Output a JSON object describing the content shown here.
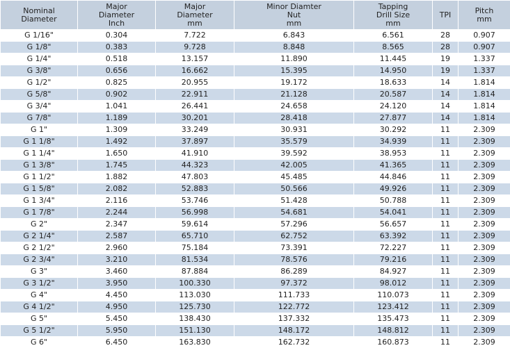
{
  "table": {
    "header": [
      [
        "Nominal",
        "Diameter"
      ],
      [
        "Major",
        "Diameter",
        "Inch"
      ],
      [
        "Major",
        "Diameter",
        "mm"
      ],
      [
        "Minor Diamter",
        "Nut",
        "mm"
      ],
      [
        "Tapping",
        "Drill Size",
        "mm"
      ],
      [
        "TPI"
      ],
      [
        "Pitch",
        "mm"
      ]
    ],
    "rows": [
      [
        "G 1/16\"",
        "0.304",
        "7.722",
        "6.843",
        "6.561",
        "28",
        "0.907"
      ],
      [
        "G 1/8\"",
        "0.383",
        "9.728",
        "8.848",
        "8.565",
        "28",
        "0.907"
      ],
      [
        "G 1/4\"",
        "0.518",
        "13.157",
        "11.890",
        "11.445",
        "19",
        "1.337"
      ],
      [
        "G 3/8\"",
        "0.656",
        "16.662",
        "15.395",
        "14.950",
        "19",
        "1.337"
      ],
      [
        "G 1/2\"",
        "0.825",
        "20.955",
        "19.172",
        "18.633",
        "14",
        "1.814"
      ],
      [
        "G 5/8\"",
        "0.902",
        "22.911",
        "21.128",
        "20.587",
        "14",
        "1.814"
      ],
      [
        "G 3/4\"",
        "1.041",
        "26.441",
        "24.658",
        "24.120",
        "14",
        "1.814"
      ],
      [
        "G 7/8\"",
        "1.189",
        "30.201",
        "28.418",
        "27.877",
        "14",
        "1.814"
      ],
      [
        "G 1\"",
        "1.309",
        "33.249",
        "30.931",
        "30.292",
        "11",
        "2.309"
      ],
      [
        "G 1 1/8\"",
        "1.492",
        "37.897",
        "35.579",
        "34.939",
        "11",
        "2.309"
      ],
      [
        "G 1 1/4\"",
        "1.650",
        "41.910",
        "39.592",
        "38.953",
        "11",
        "2.309"
      ],
      [
        "G 1 3/8\"",
        "1.745",
        "44.323",
        "42.005",
        "41.365",
        "11",
        "2.309"
      ],
      [
        "G 1 1/2\"",
        "1.882",
        "47.803",
        "45.485",
        "44.846",
        "11",
        "2.309"
      ],
      [
        "G 1 5/8\"",
        "2.082",
        "52.883",
        "50.566",
        "49.926",
        "11",
        "2.309"
      ],
      [
        "G 1 3/4\"",
        "2.116",
        "53.746",
        "51.428",
        "50.788",
        "11",
        "2.309"
      ],
      [
        "G 1 7/8\"",
        "2.244",
        "56.998",
        "54.681",
        "54.041",
        "11",
        "2.309"
      ],
      [
        "G 2\"",
        "2.347",
        "59.614",
        "57.296",
        "56.657",
        "11",
        "2.309"
      ],
      [
        "G 2 1/4\"",
        "2.587",
        "65.710",
        "62.752",
        "63.392",
        "11",
        "2.309"
      ],
      [
        "G 2 1/2\"",
        "2.960",
        "75.184",
        "73.391",
        "72.227",
        "11",
        "2.309"
      ],
      [
        "G 2 3/4\"",
        "3.210",
        "81.534",
        "78.576",
        "79.216",
        "11",
        "2.309"
      ],
      [
        "G 3\"",
        "3.460",
        "87.884",
        "86.289",
        "84.927",
        "11",
        "2.309"
      ],
      [
        "G 3 1/2\"",
        "3.950",
        "100.330",
        "97.372",
        "98.012",
        "11",
        "2.309"
      ],
      [
        "G 4\"",
        "4.450",
        "113.030",
        "111.733",
        "110.073",
        "11",
        "2.309"
      ],
      [
        "G 4 1/2\"",
        "4.950",
        "125.730",
        "122.772",
        "123.412",
        "11",
        "2.309"
      ],
      [
        "G 5\"",
        "5.450",
        "138.430",
        "137.332",
        "135.473",
        "11",
        "2.309"
      ],
      [
        "G 5 1/2\"",
        "5.950",
        "151.130",
        "148.172",
        "148.812",
        "11",
        "2.309"
      ],
      [
        "G 6\"",
        "6.450",
        "163.830",
        "162.732",
        "160.873",
        "11",
        "2.309"
      ]
    ]
  }
}
